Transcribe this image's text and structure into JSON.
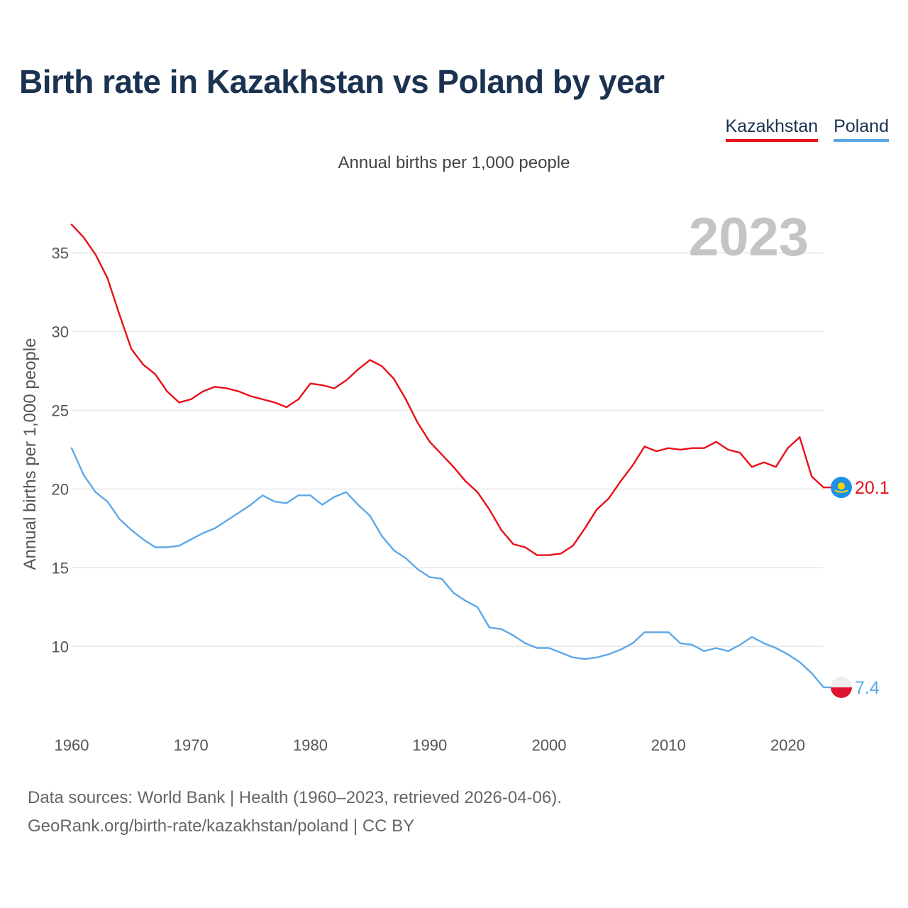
{
  "title": "Birth rate in Kazakhstan vs Poland by year",
  "subtitle": "Annual births per 1,000 people",
  "legend": [
    {
      "label": "Kazakhstan",
      "color": "#e8101a"
    },
    {
      "label": "Poland",
      "color": "#5ea8e8"
    }
  ],
  "source_lines": [
    "Data sources: World Bank | Health (1960–2023, retrieved 2026-04-06).",
    "GeoRank.org/birth-rate/kazakhstan/poland | CC BY"
  ],
  "chart_data": {
    "type": "line",
    "year_watermark": "2023",
    "ylabel": "Annual births per 1,000 people",
    "xlabel": "",
    "xlim": [
      1960,
      2023
    ],
    "ylim": [
      6,
      38
    ],
    "x_ticks": [
      1960,
      1970,
      1980,
      1990,
      2000,
      2010,
      2020
    ],
    "y_ticks": [
      10,
      15,
      20,
      25,
      30,
      35
    ],
    "grid": true,
    "x": [
      1960,
      1961,
      1962,
      1963,
      1964,
      1965,
      1966,
      1967,
      1968,
      1969,
      1970,
      1971,
      1972,
      1973,
      1974,
      1975,
      1976,
      1977,
      1978,
      1979,
      1980,
      1981,
      1982,
      1983,
      1984,
      1985,
      1986,
      1987,
      1988,
      1989,
      1990,
      1991,
      1992,
      1993,
      1994,
      1995,
      1996,
      1997,
      1998,
      1999,
      2000,
      2001,
      2002,
      2003,
      2004,
      2005,
      2006,
      2007,
      2008,
      2009,
      2010,
      2011,
      2012,
      2013,
      2014,
      2015,
      2016,
      2017,
      2018,
      2019,
      2020,
      2021,
      2022,
      2023
    ],
    "series": [
      {
        "name": "Kazakhstan",
        "color": "#e8101a",
        "end_label": "20.1",
        "values": [
          36.8,
          36.0,
          34.9,
          33.4,
          31.1,
          28.9,
          27.9,
          27.3,
          26.2,
          25.5,
          25.7,
          26.2,
          26.5,
          26.4,
          26.2,
          25.9,
          25.7,
          25.5,
          25.2,
          25.7,
          26.7,
          26.6,
          26.4,
          26.9,
          27.6,
          28.2,
          27.8,
          27.0,
          25.7,
          24.2,
          23.0,
          22.2,
          21.4,
          20.5,
          19.8,
          18.7,
          17.4,
          16.5,
          16.3,
          15.8,
          15.8,
          15.9,
          16.4,
          17.5,
          18.7,
          19.4,
          20.5,
          21.5,
          22.7,
          22.4,
          22.6,
          22.5,
          22.6,
          22.6,
          23.0,
          22.5,
          22.3,
          21.4,
          21.7,
          21.4,
          22.6,
          23.3,
          20.8,
          20.1
        ]
      },
      {
        "name": "Poland",
        "color": "#5ea8e8",
        "end_label": "7.4",
        "values": [
          22.6,
          20.9,
          19.8,
          19.2,
          18.1,
          17.4,
          16.8,
          16.3,
          16.3,
          16.4,
          16.8,
          17.2,
          17.5,
          18.0,
          18.5,
          19.0,
          19.6,
          19.2,
          19.1,
          19.6,
          19.6,
          19.0,
          19.5,
          19.8,
          19.0,
          18.3,
          17.0,
          16.1,
          15.6,
          14.9,
          14.4,
          14.3,
          13.4,
          12.9,
          12.5,
          11.2,
          11.1,
          10.7,
          10.2,
          9.9,
          9.9,
          9.6,
          9.3,
          9.2,
          9.3,
          9.5,
          9.8,
          10.2,
          10.9,
          10.9,
          10.9,
          10.2,
          10.1,
          9.7,
          9.9,
          9.7,
          10.1,
          10.6,
          10.2,
          9.9,
          9.5,
          9.0,
          8.3,
          7.4
        ]
      }
    ]
  }
}
